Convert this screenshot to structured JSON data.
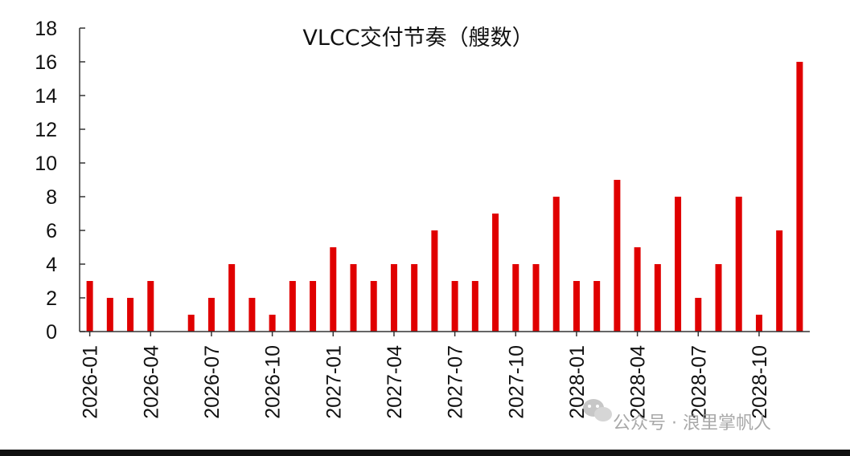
{
  "chart_data": {
    "type": "bar",
    "title": "VLCC交付节奏（艘数）",
    "xlabel": "",
    "ylabel": "",
    "ylim": [
      0,
      18
    ],
    "yticks": [
      0,
      2,
      4,
      6,
      8,
      10,
      12,
      14,
      16,
      18
    ],
    "tick_labels": [
      "2026-01",
      "2026-04",
      "2026-07",
      "2026-10",
      "2027-01",
      "2027-04",
      "2027-07",
      "2027-10",
      "2028-01",
      "2028-04",
      "2028-07",
      "2028-10"
    ],
    "categories": [
      "2026-01",
      "2026-02",
      "2026-03",
      "2026-04",
      "2026-05",
      "2026-06",
      "2026-07",
      "2026-08",
      "2026-09",
      "2026-10",
      "2026-11",
      "2026-12",
      "2027-01",
      "2027-02",
      "2027-03",
      "2027-04",
      "2027-05",
      "2027-06",
      "2027-07",
      "2027-08",
      "2027-09",
      "2027-10",
      "2027-11",
      "2027-12",
      "2028-01",
      "2028-02",
      "2028-03",
      "2028-04",
      "2028-05",
      "2028-06",
      "2028-07",
      "2028-08",
      "2028-09",
      "2028-10",
      "2028-11",
      "2028-12"
    ],
    "values": [
      3,
      2,
      2,
      3,
      0,
      1,
      2,
      4,
      2,
      1,
      3,
      3,
      5,
      4,
      3,
      4,
      4,
      6,
      3,
      3,
      7,
      4,
      4,
      8,
      3,
      3,
      9,
      5,
      4,
      8,
      2,
      4,
      8,
      1,
      6,
      16
    ],
    "grid": false,
    "legend": "none",
    "bar_color": "#e00000"
  },
  "watermark": {
    "text": "公众号 · 浪里掌帆人",
    "icon": "wechat-icon"
  }
}
